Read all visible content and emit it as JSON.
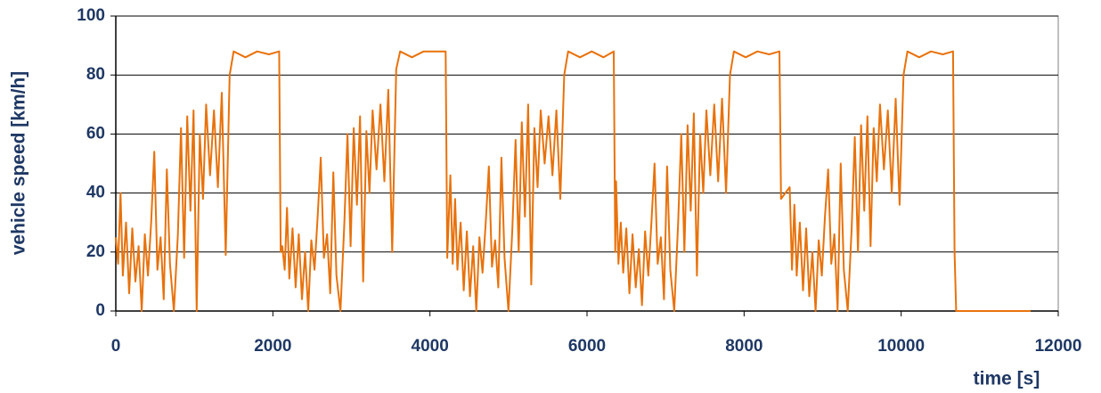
{
  "chart_data": {
    "type": "line",
    "x_label": "time [s]",
    "y_label": "vehicle speed [km/h]",
    "xlim": [
      0,
      12000
    ],
    "xticks": [
      0,
      2000,
      4000,
      6000,
      8000,
      10000,
      12000
    ],
    "ylim": [
      0,
      100
    ],
    "yticks": [
      0,
      20,
      40,
      60,
      80,
      100
    ],
    "grid": true,
    "color": "#e8720c",
    "x": [
      0,
      30,
      60,
      90,
      130,
      170,
      210,
      250,
      290,
      330,
      370,
      410,
      450,
      490,
      530,
      570,
      610,
      650,
      690,
      740,
      790,
      830,
      870,
      910,
      950,
      990,
      1030,
      1070,
      1110,
      1150,
      1200,
      1250,
      1300,
      1350,
      1400,
      1450,
      1500,
      1650,
      1800,
      1950,
      2080,
      2100,
      2120,
      2150,
      2180,
      2210,
      2250,
      2290,
      2330,
      2370,
      2410,
      2450,
      2490,
      2530,
      2570,
      2610,
      2650,
      2690,
      2730,
      2770,
      2810,
      2860,
      2910,
      2950,
      2990,
      3030,
      3070,
      3110,
      3150,
      3190,
      3230,
      3270,
      3320,
      3370,
      3420,
      3470,
      3520,
      3570,
      3620,
      3770,
      3920,
      4070,
      4200,
      4220,
      4260,
      4290,
      4320,
      4350,
      4390,
      4430,
      4470,
      4510,
      4550,
      4590,
      4630,
      4670,
      4710,
      4750,
      4790,
      4830,
      4870,
      4910,
      4950,
      5000,
      5050,
      5090,
      5130,
      5170,
      5210,
      5250,
      5290,
      5330,
      5370,
      5410,
      5460,
      5510,
      5560,
      5610,
      5660,
      5710,
      5760,
      5910,
      6060,
      6210,
      6340,
      6360,
      6370,
      6400,
      6430,
      6460,
      6500,
      6540,
      6580,
      6620,
      6660,
      6700,
      6740,
      6780,
      6820,
      6860,
      6900,
      6940,
      6980,
      7020,
      7060,
      7110,
      7160,
      7200,
      7240,
      7280,
      7320,
      7360,
      7400,
      7440,
      7480,
      7520,
      7570,
      7620,
      7670,
      7720,
      7770,
      7820,
      7870,
      8020,
      8170,
      8320,
      8450,
      8470,
      8580,
      8610,
      8640,
      8670,
      8710,
      8750,
      8790,
      8830,
      8870,
      8910,
      8950,
      8990,
      9030,
      9070,
      9110,
      9150,
      9190,
      9230,
      9270,
      9320,
      9370,
      9410,
      9450,
      9490,
      9530,
      9570,
      9610,
      9650,
      9690,
      9730,
      9780,
      9830,
      9880,
      9930,
      9980,
      10030,
      10080,
      10230,
      10380,
      10530,
      10660,
      10680,
      10700,
      11650
    ],
    "values": [
      25,
      16,
      40,
      12,
      30,
      6,
      28,
      10,
      22,
      0,
      26,
      12,
      30,
      54,
      14,
      25,
      4,
      48,
      16,
      0,
      26,
      62,
      18,
      66,
      34,
      68,
      0,
      60,
      38,
      70,
      46,
      68,
      42,
      74,
      19,
      80,
      88,
      86,
      88,
      87,
      88,
      20,
      22,
      14,
      35,
      11,
      28,
      8,
      26,
      4,
      20,
      0,
      24,
      14,
      32,
      52,
      18,
      26,
      6,
      47,
      12,
      0,
      30,
      60,
      22,
      62,
      36,
      66,
      10,
      61,
      40,
      68,
      48,
      70,
      44,
      75,
      20,
      82,
      88,
      86,
      88,
      88,
      88,
      18,
      46,
      16,
      38,
      14,
      30,
      7,
      27,
      5,
      22,
      0,
      25,
      13,
      30,
      49,
      15,
      24,
      8,
      52,
      18,
      0,
      28,
      58,
      20,
      64,
      32,
      70,
      9,
      62,
      42,
      68,
      50,
      66,
      46,
      68,
      38,
      80,
      88,
      86,
      88,
      86,
      88,
      20,
      44,
      16,
      30,
      13,
      28,
      6,
      26,
      8,
      21,
      2,
      27,
      12,
      30,
      50,
      16,
      25,
      4,
      49,
      14,
      0,
      30,
      60,
      20,
      63,
      34,
      67,
      12,
      60,
      40,
      68,
      46,
      70,
      44,
      72,
      40,
      80,
      88,
      86,
      88,
      87,
      88,
      38,
      42,
      14,
      36,
      12,
      30,
      7,
      28,
      5,
      20,
      0,
      24,
      12,
      32,
      48,
      16,
      26,
      0,
      50,
      14,
      0,
      28,
      59,
      20,
      63,
      34,
      66,
      22,
      62,
      44,
      70,
      48,
      68,
      40,
      72,
      36,
      80,
      88,
      86,
      88,
      87,
      88,
      20,
      0,
      0
    ]
  }
}
